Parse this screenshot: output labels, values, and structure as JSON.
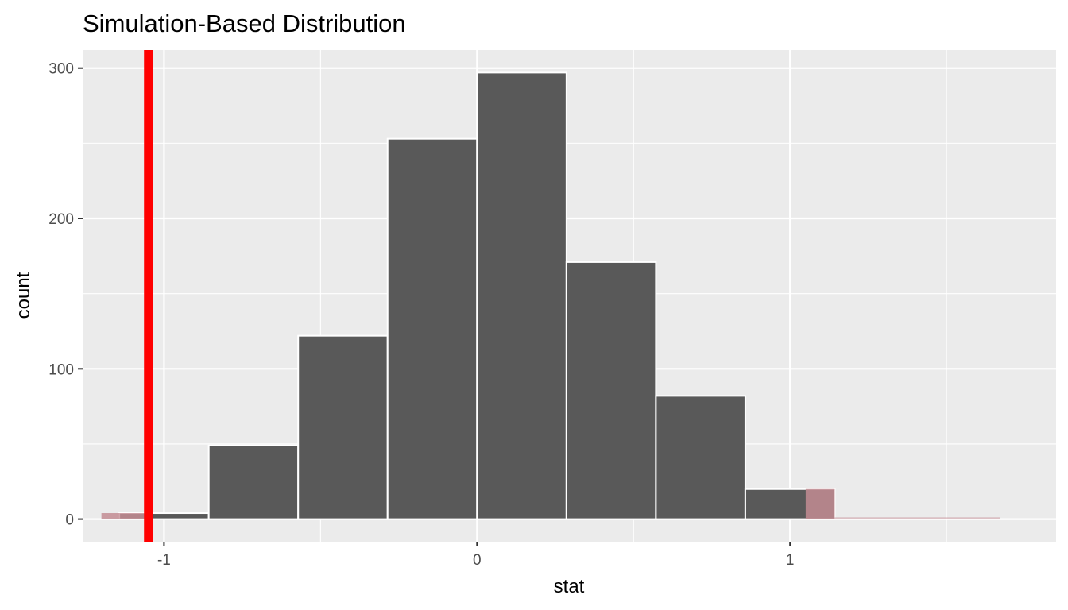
{
  "chart_data": {
    "type": "bar",
    "title": "Simulation-Based Distribution",
    "xlabel": "stat",
    "ylabel": "count",
    "xlim": [
      -1.26,
      1.85
    ],
    "ylim": [
      -15,
      312
    ],
    "x_ticks": [
      {
        "value": -1,
        "label": "-1"
      },
      {
        "value": 0,
        "label": "0"
      },
      {
        "value": 1,
        "label": "1"
      }
    ],
    "y_ticks": [
      {
        "value": 0,
        "label": "0"
      },
      {
        "value": 100,
        "label": "100"
      },
      {
        "value": 200,
        "label": "200"
      },
      {
        "value": 300,
        "label": "300"
      }
    ],
    "x_minor_breaks": [
      -0.5,
      0.5,
      1.5
    ],
    "y_minor_breaks": [
      50,
      150,
      250
    ],
    "grid": true,
    "bin_width": 0.2857,
    "bins": [
      {
        "center": -1.0,
        "count": 4
      },
      {
        "center": -0.7143,
        "count": 49
      },
      {
        "center": -0.4286,
        "count": 122
      },
      {
        "center": -0.1429,
        "count": 253
      },
      {
        "center": 0.1429,
        "count": 297
      },
      {
        "center": 0.4286,
        "count": 171
      },
      {
        "center": 0.7143,
        "count": 82
      },
      {
        "center": 1.0,
        "count": 20
      }
    ],
    "observed_stat": -1.05,
    "shaded_regions": [
      {
        "from": -1.2,
        "to": -1.05
      },
      {
        "from": 1.05,
        "to": 1.67
      }
    ],
    "colors": {
      "bar_fill": "#595959",
      "bar_outline": "#ffffff",
      "panel_background": "#ebebeb",
      "grid": "#ffffff",
      "observed_line": "#ff0000",
      "shade": "#c38c93"
    }
  }
}
